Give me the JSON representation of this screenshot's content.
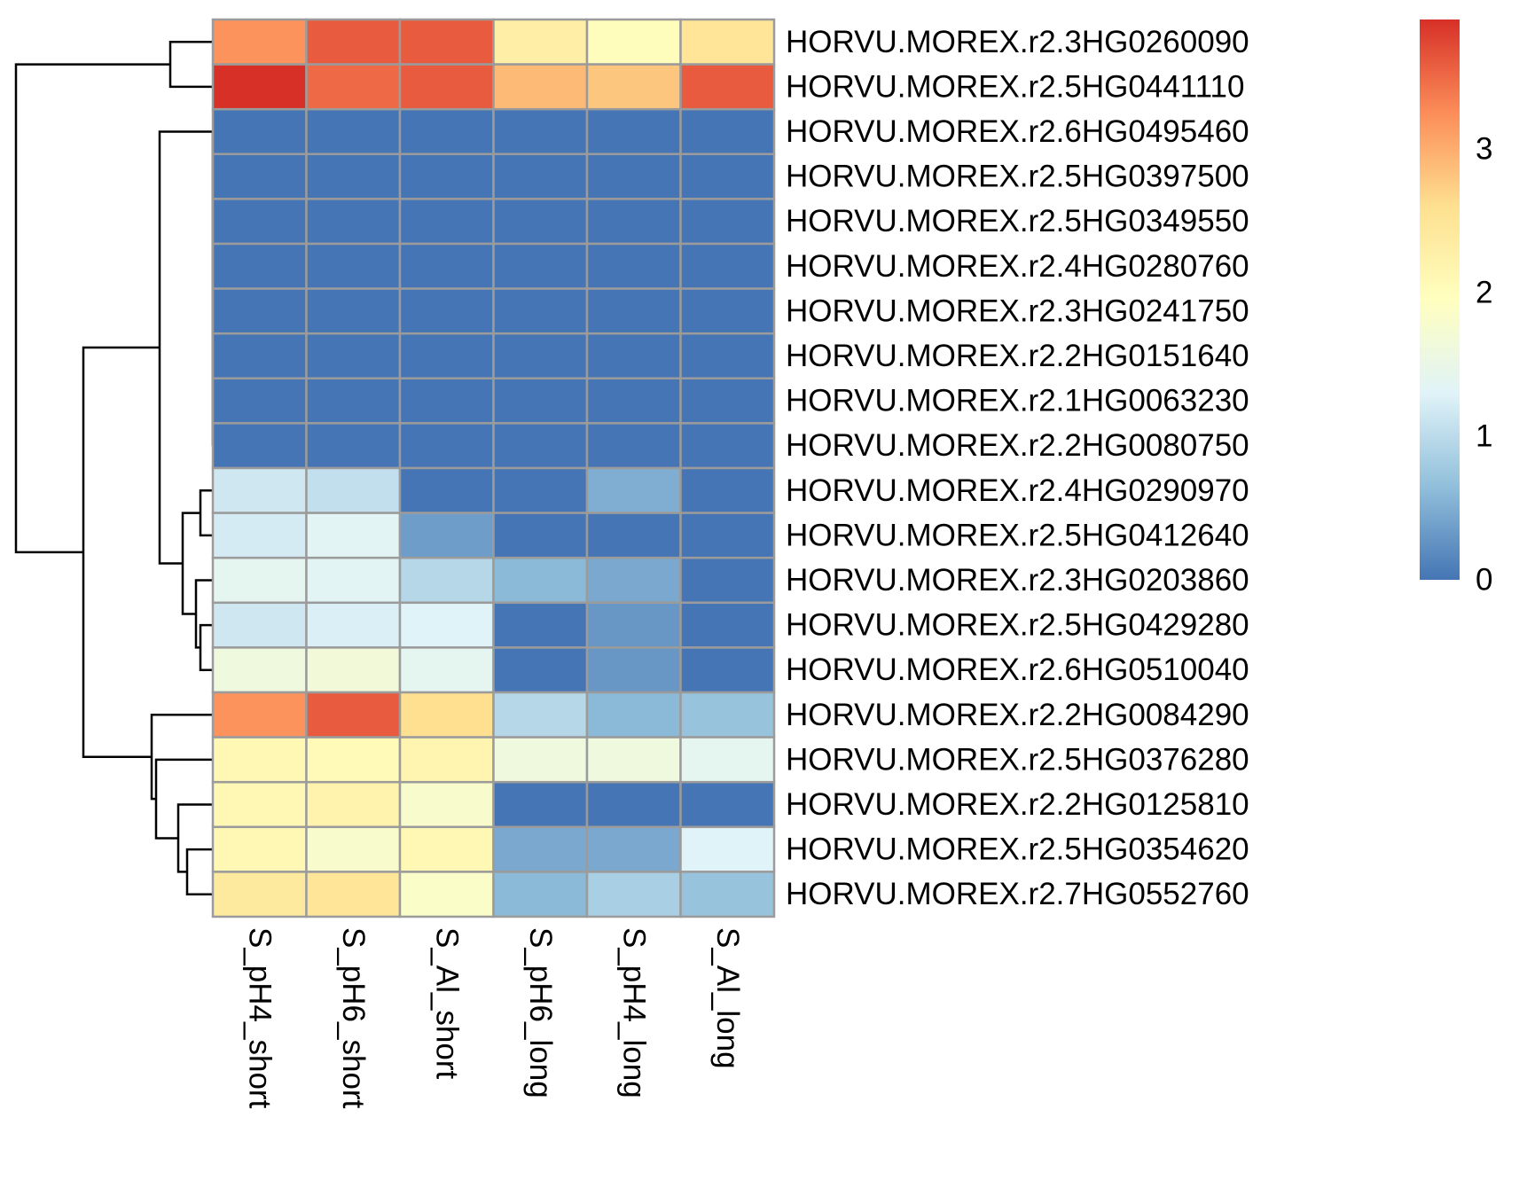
{
  "chart_data": {
    "type": "heatmap",
    "title": "",
    "xlabel": "",
    "ylabel": "",
    "columns": [
      "S_pH4_short",
      "S_pH6_short",
      "S_Al_short",
      "S_pH6_long",
      "S_pH4_long",
      "S_Al_long"
    ],
    "rows": [
      "HORVU.MOREX.r2.3HG0260090",
      "HORVU.MOREX.r2.5HG0441110",
      "HORVU.MOREX.r2.6HG0495460",
      "HORVU.MOREX.r2.5HG0397500",
      "HORVU.MOREX.r2.5HG0349550",
      "HORVU.MOREX.r2.4HG0280760",
      "HORVU.MOREX.r2.3HG0241750",
      "HORVU.MOREX.r2.2HG0151640",
      "HORVU.MOREX.r2.1HG0063230",
      "HORVU.MOREX.r2.2HG0080750",
      "HORVU.MOREX.r2.4HG0290970",
      "HORVU.MOREX.r2.5HG0412640",
      "HORVU.MOREX.r2.3HG0203860",
      "HORVU.MOREX.r2.5HG0429280",
      "HORVU.MOREX.r2.6HG0510040",
      "HORVU.MOREX.r2.2HG0084290",
      "HORVU.MOREX.r2.5HG0376280",
      "HORVU.MOREX.r2.2HG0125810",
      "HORVU.MOREX.r2.5HG0354620",
      "HORVU.MOREX.r2.7HG0552760"
    ],
    "values": [
      [
        3.2,
        3.6,
        3.6,
        2.3,
        2.0,
        2.5
      ],
      [
        3.9,
        3.5,
        3.6,
        2.9,
        2.8,
        3.6
      ],
      [
        0,
        0,
        0,
        0,
        0,
        0
      ],
      [
        0,
        0,
        0,
        0,
        0,
        0
      ],
      [
        0,
        0,
        0,
        0,
        0,
        0
      ],
      [
        0,
        0,
        0,
        0,
        0,
        0
      ],
      [
        0,
        0,
        0,
        0,
        0,
        0
      ],
      [
        0,
        0,
        0,
        0,
        0,
        0
      ],
      [
        0,
        0,
        0,
        0,
        0,
        0
      ],
      [
        0,
        0,
        0,
        0,
        0,
        0
      ],
      [
        1.15,
        1.05,
        0,
        0,
        0.5,
        0
      ],
      [
        1.2,
        1.35,
        0.35,
        0,
        0,
        0
      ],
      [
        1.4,
        1.35,
        0.95,
        0.6,
        0.45,
        0
      ],
      [
        1.15,
        1.25,
        1.3,
        0,
        0.3,
        0
      ],
      [
        1.6,
        1.65,
        1.4,
        0,
        0.3,
        0
      ],
      [
        3.2,
        3.6,
        2.6,
        0.95,
        0.6,
        0.7
      ],
      [
        2.1,
        2.05,
        2.15,
        1.6,
        1.6,
        1.4
      ],
      [
        2.1,
        2.2,
        1.8,
        0,
        0,
        0
      ],
      [
        2.1,
        1.8,
        2.1,
        0.45,
        0.45,
        1.3
      ],
      [
        2.4,
        2.5,
        1.85,
        0.6,
        0.85,
        0.7
      ]
    ],
    "colorbar": {
      "ticks": [
        "0",
        "1",
        "2",
        "3"
      ],
      "tick_values": [
        0,
        1,
        2,
        3
      ],
      "range": [
        0,
        3.9
      ],
      "colors": [
        "#4575b4",
        "#91bfdb",
        "#e0f3f8",
        "#ffffbf",
        "#fee090",
        "#fc8d59",
        "#d73027"
      ]
    },
    "grid": true,
    "legend_placement": "right",
    "row_dendrogram": true,
    "column_dendrogram": false
  }
}
